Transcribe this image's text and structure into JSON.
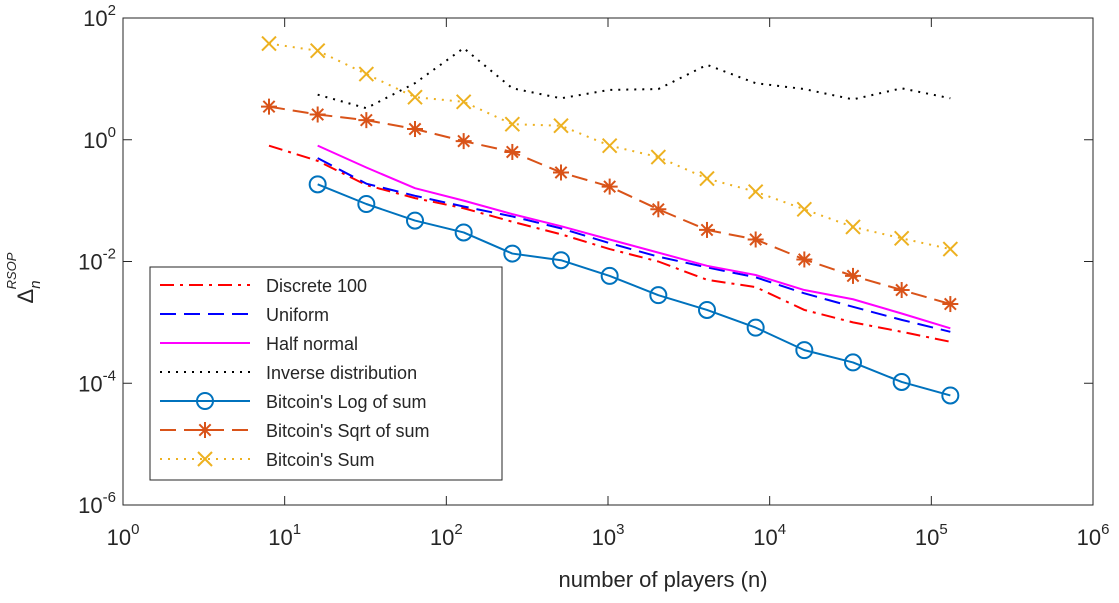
{
  "chart_data": {
    "type": "line",
    "xlabel": "number of players (n)",
    "ylabel": {
      "base": "Δ",
      "sub": "n",
      "sup": "RSOP"
    },
    "xscale": "log",
    "yscale": "log",
    "xlim": [
      1,
      1000000
    ],
    "ylim": [
      1e-06,
      100
    ],
    "grid": false,
    "legend_position": "bottom-left",
    "x_ticks": [
      {
        "base": "10",
        "exp": "0",
        "value": 1
      },
      {
        "base": "10",
        "exp": "1",
        "value": 10
      },
      {
        "base": "10",
        "exp": "2",
        "value": 100
      },
      {
        "base": "10",
        "exp": "3",
        "value": 1000
      },
      {
        "base": "10",
        "exp": "4",
        "value": 10000
      },
      {
        "base": "10",
        "exp": "5",
        "value": 100000
      },
      {
        "base": "10",
        "exp": "6",
        "value": 1000000
      }
    ],
    "y_ticks": [
      {
        "base": "10",
        "exp": "-6",
        "value": 1e-06
      },
      {
        "base": "10",
        "exp": "-4",
        "value": 0.0001
      },
      {
        "base": "10",
        "exp": "-2",
        "value": 0.01
      },
      {
        "base": "10",
        "exp": "0",
        "value": 1
      },
      {
        "base": "10",
        "exp": "2",
        "value": 100
      }
    ],
    "series": [
      {
        "name": "Discrete 100",
        "color": "#ff0000",
        "line_style": "dashdot",
        "marker": "none",
        "x": [
          8,
          16,
          32,
          64,
          128,
          256,
          512,
          1024,
          2048,
          4096,
          8192,
          16384,
          32768,
          65536,
          131072
        ],
        "y": [
          0.8,
          0.45,
          0.18,
          0.11,
          0.075,
          0.045,
          0.028,
          0.016,
          0.01,
          0.005,
          0.0038,
          0.0016,
          0.001,
          0.0007,
          0.00048
        ]
      },
      {
        "name": "Uniform",
        "color": "#0000ff",
        "line_style": "dashed",
        "marker": "none",
        "x": [
          16,
          32,
          64,
          128,
          256,
          512,
          1024,
          2048,
          4096,
          8192,
          16384,
          32768,
          65536,
          131072
        ],
        "y": [
          0.5,
          0.19,
          0.12,
          0.08,
          0.055,
          0.035,
          0.02,
          0.012,
          0.008,
          0.0055,
          0.003,
          0.0018,
          0.0011,
          0.0007
        ]
      },
      {
        "name": "Half normal",
        "color": "#ff00ff",
        "line_style": "solid",
        "marker": "none",
        "x": [
          16,
          32,
          64,
          128,
          256,
          512,
          1024,
          2048,
          4096,
          8192,
          16384,
          32768,
          65536,
          131072
        ],
        "y": [
          0.8,
          0.35,
          0.16,
          0.1,
          0.06,
          0.038,
          0.023,
          0.014,
          0.0085,
          0.006,
          0.0034,
          0.0024,
          0.0014,
          0.0008
        ]
      },
      {
        "name": "Inverse distribution",
        "color": "#000000",
        "line_style": "dotted",
        "marker": "none",
        "x": [
          16,
          32,
          64,
          128,
          256,
          512,
          1024,
          2048,
          4096,
          8192,
          16384,
          32768,
          65536,
          131072
        ],
        "y": [
          5.5,
          3.3,
          8.5,
          32,
          7,
          4.8,
          6.6,
          6.8,
          17,
          8.5,
          6.8,
          4.6,
          7,
          4.8
        ]
      },
      {
        "name": "Bitcoin's Log of sum",
        "color": "#0072bd",
        "line_style": "solid",
        "marker": "circle",
        "x": [
          16,
          32,
          64,
          128,
          256,
          512,
          1024,
          2048,
          4096,
          8192,
          16384,
          32768,
          65536,
          131072
        ],
        "y": [
          0.185,
          0.088,
          0.047,
          0.03,
          0.0135,
          0.0105,
          0.0058,
          0.0028,
          0.0016,
          0.00082,
          0.00035,
          0.00022,
          0.000105,
          6.3e-05
        ]
      },
      {
        "name": "Bitcoin's Sqrt of sum",
        "color": "#d95319",
        "line_style": "dashed",
        "marker": "asterisk",
        "x": [
          8,
          16,
          32,
          64,
          128,
          256,
          512,
          1024,
          2048,
          4096,
          8192,
          16384,
          32768,
          65536,
          131072
        ],
        "y": [
          3.5,
          2.6,
          2.1,
          1.5,
          0.95,
          0.63,
          0.29,
          0.17,
          0.072,
          0.033,
          0.023,
          0.0108,
          0.0058,
          0.0034,
          0.002
        ]
      },
      {
        "name": "Bitcoin's Sum",
        "color": "#edb120",
        "line_style": "dotted",
        "marker": "cross",
        "x": [
          8,
          16,
          32,
          64,
          128,
          256,
          512,
          1024,
          2048,
          4096,
          8192,
          16384,
          32768,
          65536,
          131072
        ],
        "y": [
          38,
          29,
          12,
          5,
          4.2,
          1.8,
          1.7,
          0.8,
          0.52,
          0.23,
          0.14,
          0.072,
          0.037,
          0.024,
          0.016
        ]
      }
    ]
  }
}
